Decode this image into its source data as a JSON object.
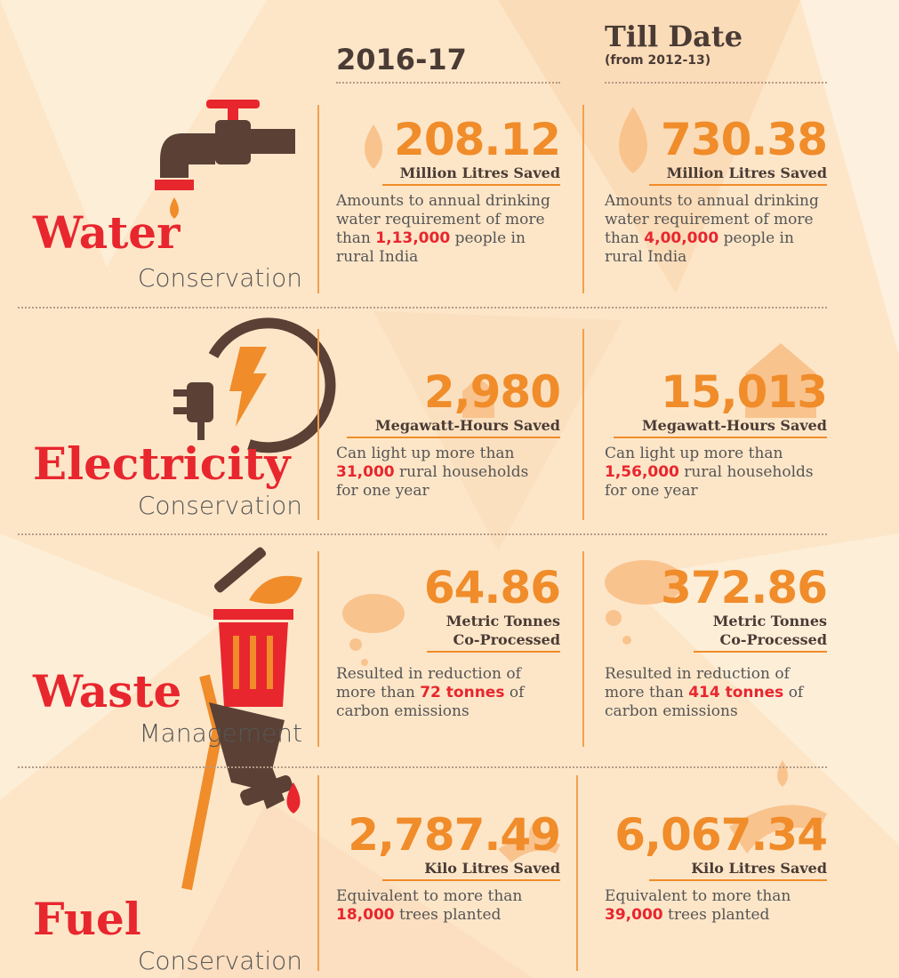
{
  "header": {
    "period": "2016-17",
    "till_date": "Till Date",
    "till_date_note": "(from 2012-13)"
  },
  "sections": [
    {
      "title": "Water",
      "subtitle": "Conservation",
      "cells": [
        {
          "value": "208.12",
          "unit": "Million Litres Saved",
          "description": {
            "before": "Amounts to annual drinking water requirement of more than ",
            "highlight": "1,13,000",
            "after": " people in rural India"
          }
        },
        {
          "value": "730.38",
          "unit": "Million Litres Saved",
          "description": {
            "before": "Amounts to annual drinking water requirement of more than ",
            "highlight": "4,00,000",
            "after": " people in rural India"
          }
        }
      ]
    },
    {
      "title": "Electricity",
      "subtitle": "Conservation",
      "cells": [
        {
          "value": "2,980",
          "unit": "Megawatt-Hours Saved",
          "description": {
            "before": "Can light up more than ",
            "highlight": "31,000",
            "after": " rural households for one year"
          }
        },
        {
          "value": "15,013",
          "unit": "Megawatt-Hours Saved",
          "description": {
            "before": "Can light up more than ",
            "highlight": "1,56,000",
            "after": " rural households for one year"
          }
        }
      ]
    },
    {
      "title": "Waste",
      "subtitle": "Management",
      "cells": [
        {
          "value": "64.86",
          "unit": "Metric Tonnes Co-Processed",
          "description": {
            "before": "Resulted in reduction of more than ",
            "highlight": "72 tonnes",
            "after": " of carbon emissions"
          }
        },
        {
          "value": "372.86",
          "unit": "Metric Tonnes Co-Processed",
          "description": {
            "before": "Resulted in reduction of more than ",
            "highlight": "414 tonnes",
            "after": " of carbon emissions"
          }
        }
      ]
    },
    {
      "title": "Fuel",
      "subtitle": "Conservation",
      "cells": [
        {
          "value": "2,787.49",
          "unit": "Kilo Litres Saved",
          "description": {
            "before": "Equivalent to more than ",
            "highlight": "18,000",
            "after": " trees planted"
          }
        },
        {
          "value": "6,067.34",
          "unit": "Kilo Litres Saved",
          "description": {
            "before": "Equivalent to more than ",
            "highlight": "39,000",
            "after": " trees planted"
          }
        }
      ]
    }
  ]
}
